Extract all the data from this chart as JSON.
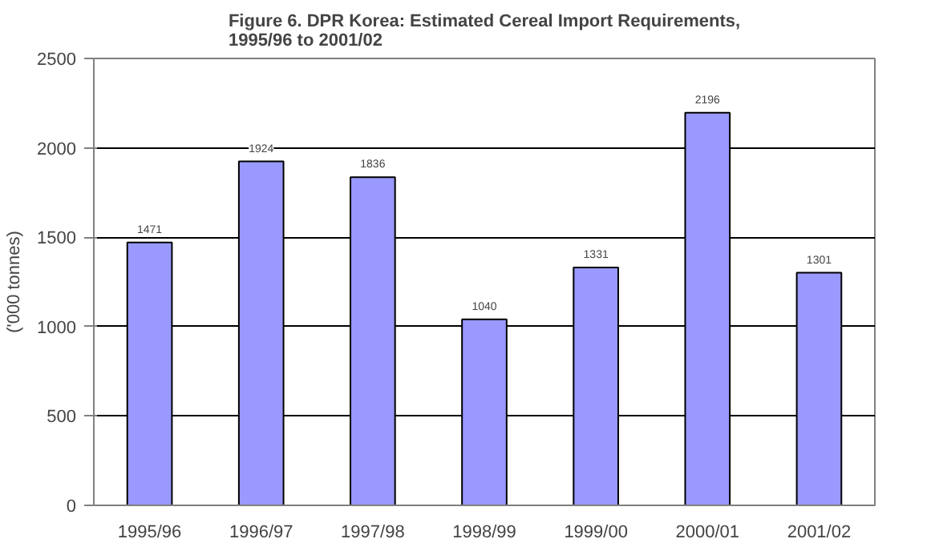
{
  "chart_data": {
    "type": "bar",
    "title": "Figure 6. DPR Korea: Estimated Cereal Import Requirements, 1995/96 to 2001/02",
    "ylabel": "('000 tonnes)",
    "categories": [
      "1995/96",
      "1996/97",
      "1997/98",
      "1998/99",
      "1999/00",
      "2000/01",
      "2001/02"
    ],
    "values": [
      1471,
      1924,
      1836,
      1040,
      1331,
      2196,
      1301
    ],
    "color": "#9999ff",
    "ylim": [
      0,
      2500
    ],
    "yticks": [
      0,
      500,
      1000,
      1500,
      2000,
      2500
    ],
    "grid": "y",
    "data_labels": true
  }
}
